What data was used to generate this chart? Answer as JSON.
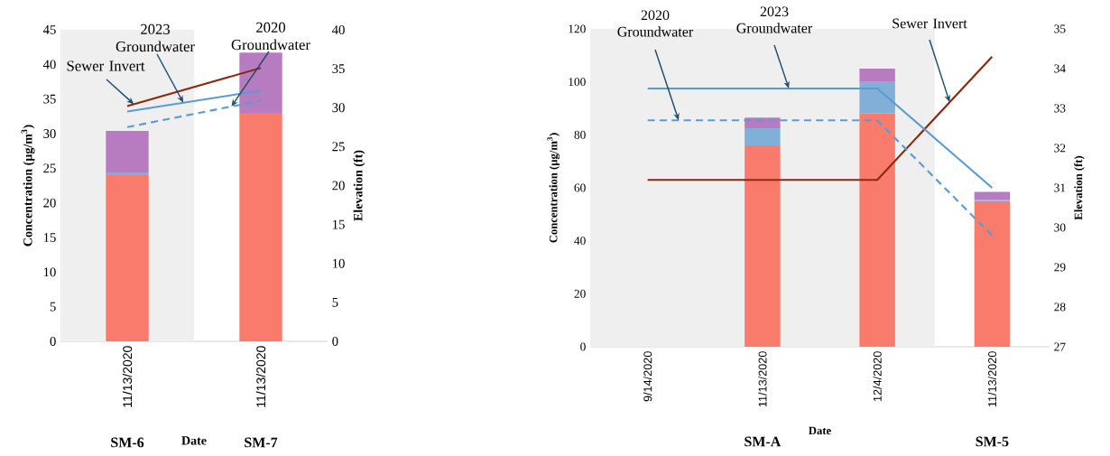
{
  "chart_data": [
    {
      "type": "bar",
      "stacked": true,
      "categories": [
        "11/13/2020",
        "11/13/2020"
      ],
      "xlabel": "Date",
      "ylabel": "Concentration (µg/m$^{3}$)",
      "y2label": "Elevation (ft)",
      "ylim": [
        0,
        45
      ],
      "yticks": [
        0,
        5,
        10,
        15,
        20,
        25,
        30,
        35,
        40,
        45
      ],
      "y2lim": [
        0,
        40
      ],
      "y2ticks": [
        0,
        5,
        10,
        15,
        20,
        25,
        30,
        35,
        40
      ],
      "series": [
        {
          "color": "#f87b6b",
          "values": [
            24,
            33
          ]
        },
        {
          "color": "#80b0d8",
          "values": [
            0.3,
            null
          ]
        },
        {
          "color": "#b77cbf",
          "values": [
            6.1,
            8.7
          ]
        },
        {
          "type": "line",
          "name": "Sewer Invert",
          "color": "#8b2a0e",
          "axis": "y2",
          "line_style": "solid",
          "values": [
            30.2,
            35.1
          ]
        },
        {
          "type": "line",
          "name": "2023 Groundwater",
          "color": "#5b9bd5",
          "axis": "y2",
          "line_style": "solid",
          "values": [
            29.5,
            32.2
          ]
        },
        {
          "type": "line",
          "name": "2020 Groundwater",
          "color": "#5b9bd5",
          "axis": "y2",
          "line_style": "dashed",
          "values": [
            27.5,
            30.9
          ]
        }
      ],
      "bands": [
        {
          "axis": "x",
          "from": "11/13/2020",
          "to": "11/13/2020",
          "color": "#efefef"
        }
      ],
      "annotations": [
        "SM-6",
        "SM-7"
      ]
    },
    {
      "type": "bar",
      "stacked": true,
      "categories": [
        "9/14/2020",
        "11/13/2020",
        "12/4/2020",
        "11/13/2020"
      ],
      "xlabel": "Date",
      "ylabel": "Concentration (µg/m$^{3}$)",
      "y2label": "Elevation (ft)",
      "ylim": [
        0,
        120
      ],
      "yticks": [
        0,
        20,
        40,
        60,
        80,
        100,
        120
      ],
      "y2lim": [
        27,
        35
      ],
      "y2ticks": [
        27,
        28,
        29,
        30,
        31,
        32,
        33,
        34,
        35
      ],
      "series": [
        {
          "color": "#f87b6b",
          "values": [
            null,
            76,
            88,
            55
          ]
        },
        {
          "color": "#80b0d8",
          "values": [
            null,
            6.5,
            12,
            0.5
          ]
        },
        {
          "color": "#b77cbf",
          "values": [
            null,
            4,
            5,
            3
          ]
        },
        {
          "type": "line",
          "name": "Sewer Invert",
          "color": "#8b2a0e",
          "axis": "y2",
          "line_style": "solid",
          "values": [
            31.2,
            31.2,
            31.2,
            34.3
          ]
        },
        {
          "type": "line",
          "name": "2023 Groundwater",
          "color": "#5b9bd5",
          "axis": "y2",
          "line_style": "solid",
          "values": [
            33.5,
            33.5,
            33.5,
            31.0
          ]
        },
        {
          "type": "line",
          "name": "2020 Groundwater",
          "color": "#5b9bd5",
          "axis": "y2",
          "line_style": "dashed",
          "values": [
            32.7,
            32.7,
            32.7,
            29.8
          ]
        }
      ],
      "bands": [
        {
          "axis": "x",
          "from": "9/14/2020",
          "to": "12/4/2020",
          "color": "#efefef"
        }
      ],
      "annotations": [
        "SM-A",
        "SM-5"
      ]
    }
  ]
}
